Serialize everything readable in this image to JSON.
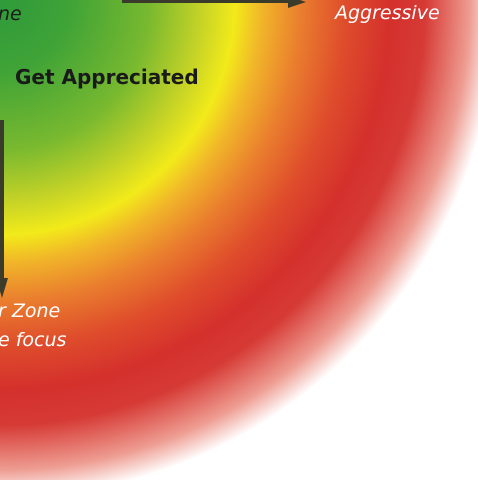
{
  "labels": {
    "top_left_fragment": "ne",
    "aggressive": "Aggressive",
    "heading": "Get Appreciated",
    "zone_line1": "r Zone",
    "zone_line2": "e focus"
  },
  "colors": {
    "green": "#2e9a3a",
    "yellow": "#f2ea1a",
    "orange": "#ea7f2e",
    "red": "#d4302c",
    "arrow": "#3b3b2c"
  }
}
